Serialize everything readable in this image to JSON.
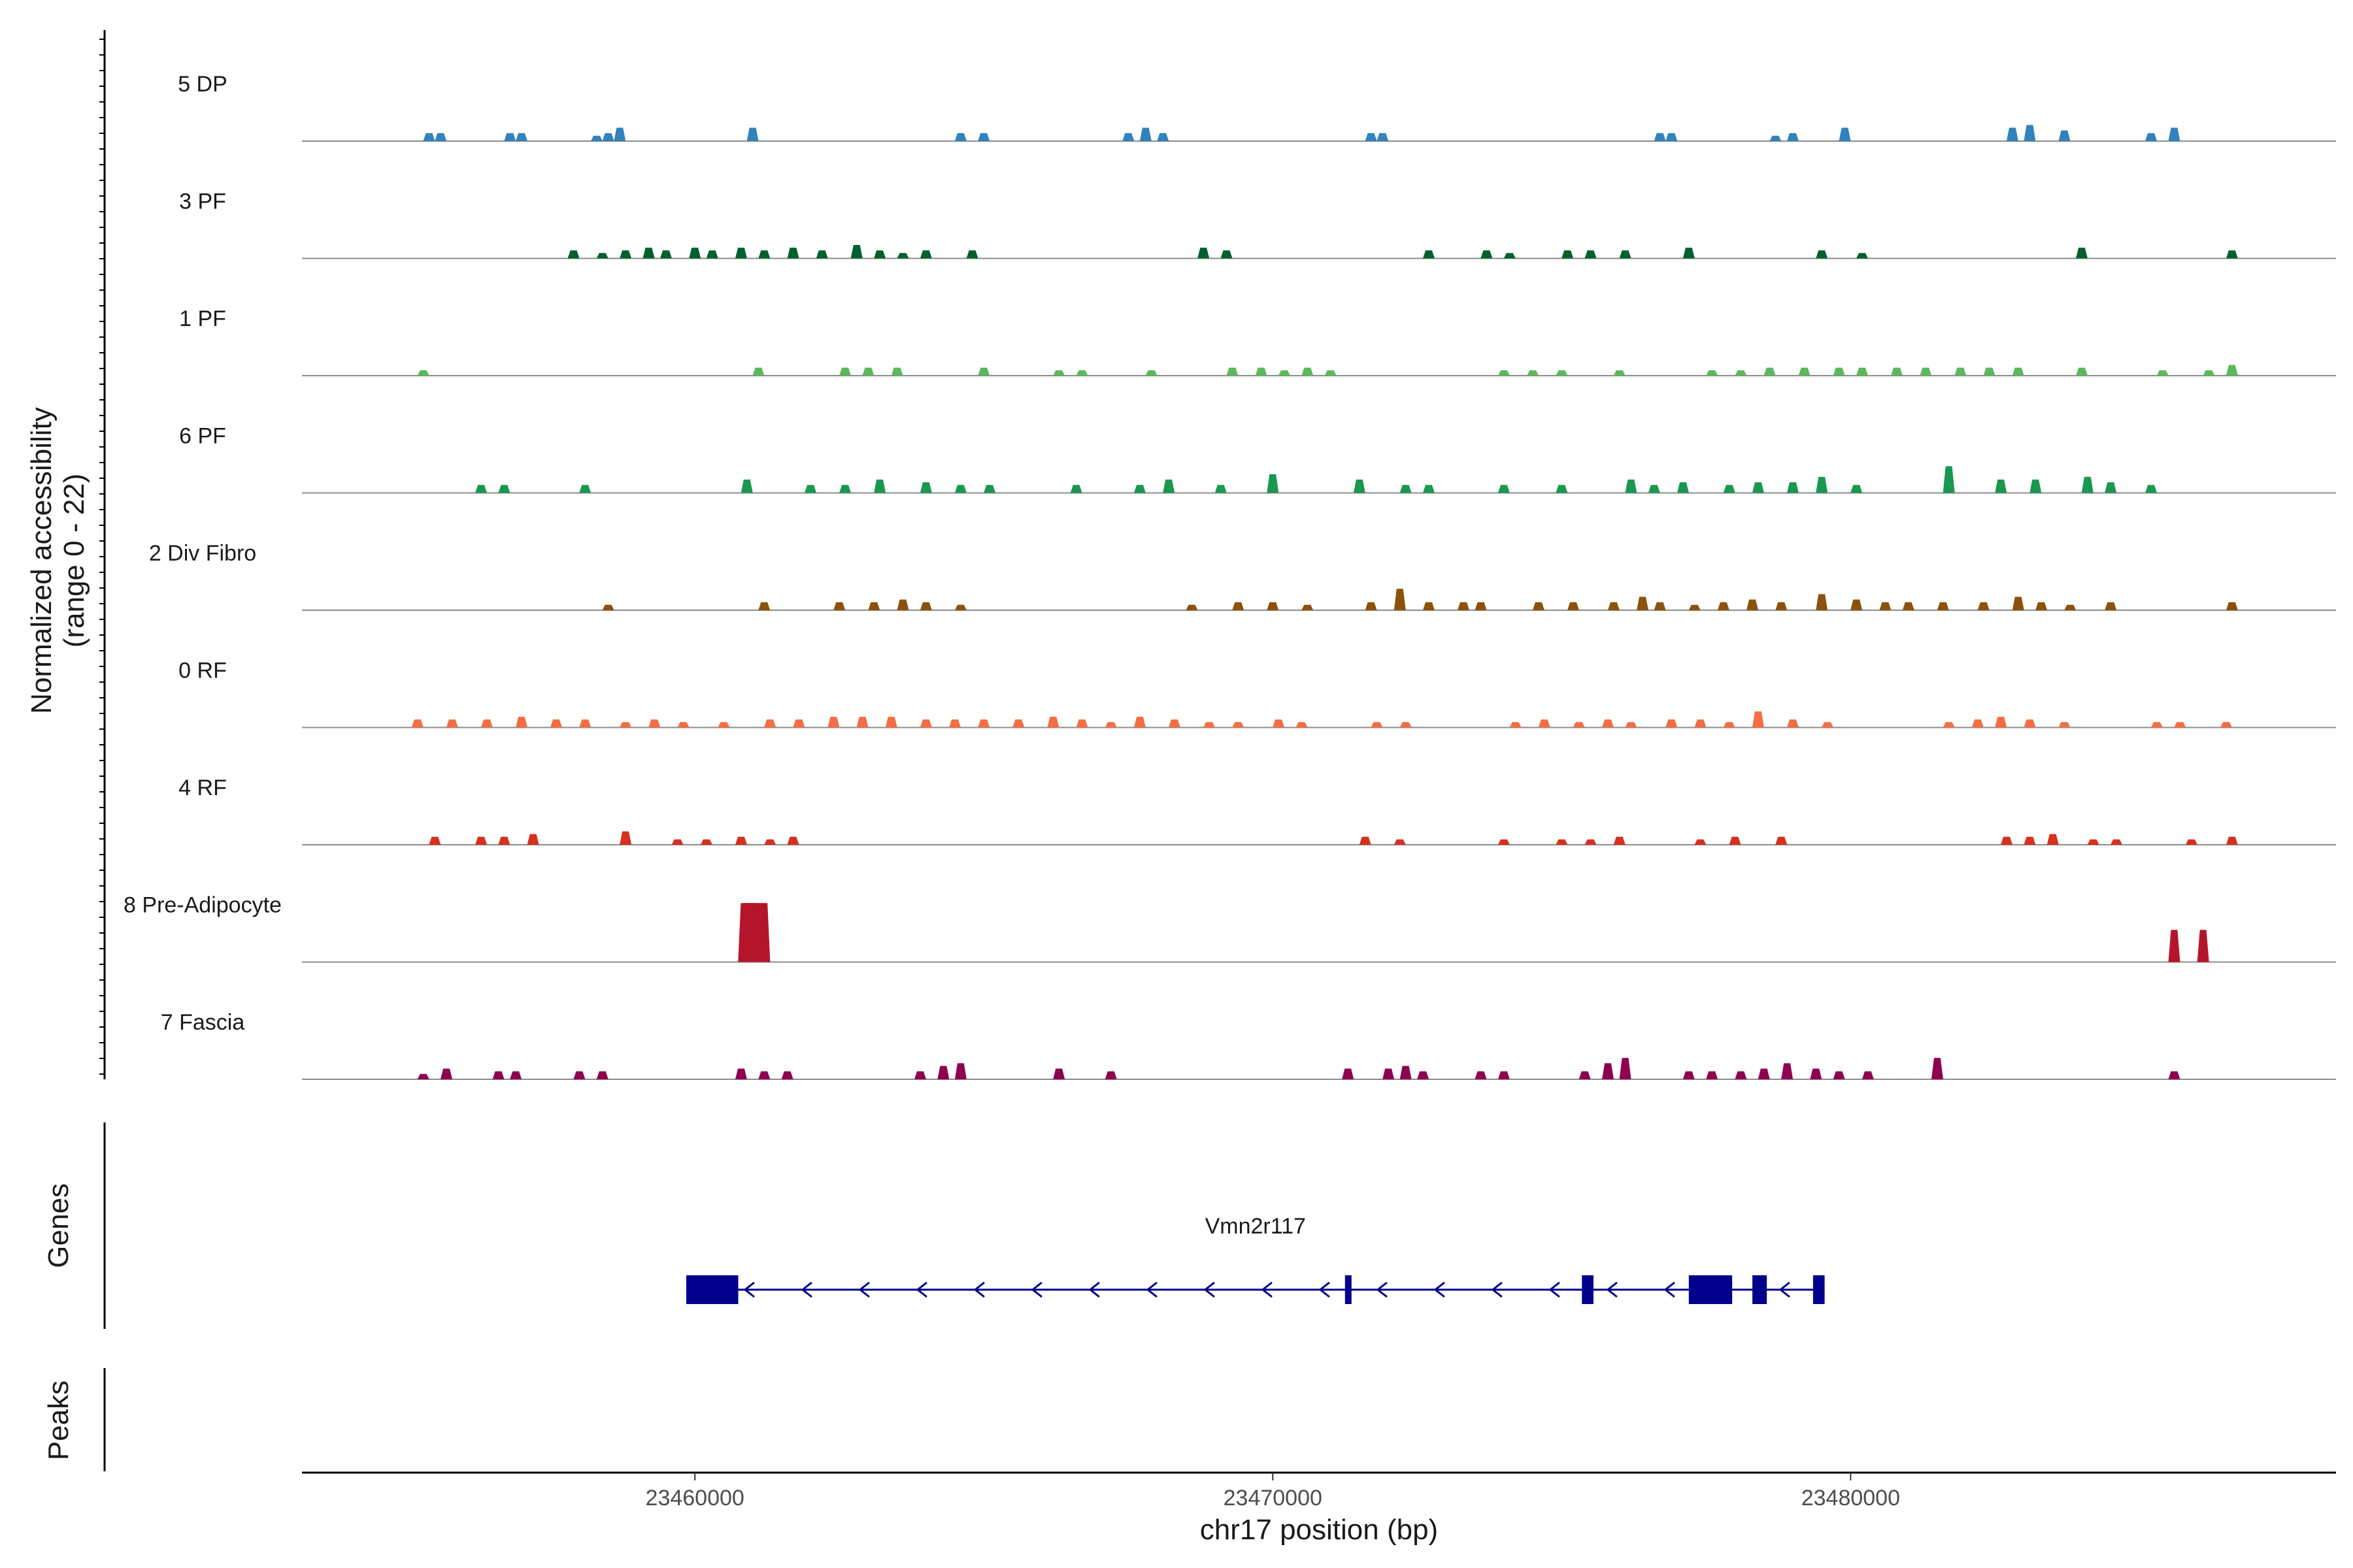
{
  "chart_data": {
    "type": "coverage",
    "title": "",
    "ylabel_line1": "Normalized accessibility",
    "ylabel_line2": "(range 0 - 22)",
    "y_range": [
      0,
      22
    ],
    "xlabel": "chr17 position (bp)",
    "xlim": [
      23453200,
      23488400
    ],
    "x_ticks": [
      23460000,
      23470000,
      23480000
    ],
    "tracks": [
      {
        "name": "5 DP",
        "color": "#3182bd",
        "peaks": [
          [
            23455400,
            1.5
          ],
          [
            23455600,
            1.5
          ],
          [
            23456800,
            1.5
          ],
          [
            23457000,
            1.5
          ],
          [
            23458300,
            1
          ],
          [
            23458500,
            1.5
          ],
          [
            23458700,
            2.5
          ],
          [
            23461000,
            2.5
          ],
          [
            23464600,
            1.5
          ],
          [
            23465000,
            1.5
          ],
          [
            23467500,
            1.5
          ],
          [
            23467800,
            2.5
          ],
          [
            23468100,
            1.5
          ],
          [
            23471700,
            1.5
          ],
          [
            23471900,
            1.5
          ],
          [
            23476700,
            1.5
          ],
          [
            23476900,
            1.5
          ],
          [
            23478700,
            1
          ],
          [
            23479000,
            1.5
          ],
          [
            23479900,
            2.5
          ],
          [
            23482800,
            2.5
          ],
          [
            23483100,
            3
          ],
          [
            23483700,
            2
          ],
          [
            23485200,
            1.5
          ],
          [
            23485600,
            2.5
          ]
        ]
      },
      {
        "name": "3 PF",
        "color": "#00612e",
        "peaks": [
          [
            23457900,
            1.5
          ],
          [
            23458400,
            1
          ],
          [
            23458800,
            1.5
          ],
          [
            23459200,
            2
          ],
          [
            23459500,
            1.5
          ],
          [
            23460000,
            2
          ],
          [
            23460300,
            1.5
          ],
          [
            23460800,
            2
          ],
          [
            23461200,
            1.5
          ],
          [
            23461700,
            2
          ],
          [
            23462200,
            1.5
          ],
          [
            23462800,
            2.5
          ],
          [
            23463200,
            1.5
          ],
          [
            23463600,
            1
          ],
          [
            23464000,
            1.5
          ],
          [
            23464800,
            1.5
          ],
          [
            23468800,
            2
          ],
          [
            23469200,
            1.5
          ],
          [
            23472700,
            1.5
          ],
          [
            23473700,
            1.5
          ],
          [
            23474100,
            1
          ],
          [
            23475100,
            1.5
          ],
          [
            23475500,
            1.5
          ],
          [
            23476100,
            1.5
          ],
          [
            23477200,
            2
          ],
          [
            23479500,
            1.5
          ],
          [
            23480200,
            1
          ],
          [
            23484000,
            2
          ],
          [
            23486600,
            1.5
          ]
        ]
      },
      {
        "name": "1 PF",
        "color": "#5cb85c",
        "peaks": [
          [
            23455300,
            1
          ],
          [
            23461100,
            1.5
          ],
          [
            23462600,
            1.5
          ],
          [
            23463000,
            1.5
          ],
          [
            23463500,
            1.5
          ],
          [
            23465000,
            1.5
          ],
          [
            23466300,
            1
          ],
          [
            23466700,
            1
          ],
          [
            23467900,
            1
          ],
          [
            23469300,
            1.5
          ],
          [
            23469800,
            1.5
          ],
          [
            23470200,
            1
          ],
          [
            23470600,
            1.5
          ],
          [
            23471000,
            1
          ],
          [
            23474000,
            1
          ],
          [
            23474500,
            1
          ],
          [
            23475000,
            1
          ],
          [
            23476000,
            1
          ],
          [
            23477600,
            1
          ],
          [
            23478100,
            1
          ],
          [
            23478600,
            1.5
          ],
          [
            23479200,
            1.5
          ],
          [
            23479800,
            1.5
          ],
          [
            23480200,
            1.5
          ],
          [
            23480800,
            1.5
          ],
          [
            23481300,
            1.5
          ],
          [
            23481900,
            1.5
          ],
          [
            23482400,
            1.5
          ],
          [
            23482900,
            1.5
          ],
          [
            23484000,
            1.5
          ],
          [
            23485400,
            1
          ],
          [
            23486200,
            1
          ],
          [
            23486600,
            2
          ]
        ]
      },
      {
        "name": "6 PF",
        "color": "#1a9850",
        "peaks": [
          [
            23456300,
            1.5
          ],
          [
            23456700,
            1.5
          ],
          [
            23458100,
            1.5
          ],
          [
            23460900,
            2.5
          ],
          [
            23462000,
            1.5
          ],
          [
            23462600,
            1.5
          ],
          [
            23463200,
            2.5
          ],
          [
            23464000,
            2
          ],
          [
            23464600,
            1.5
          ],
          [
            23465100,
            1.5
          ],
          [
            23466600,
            1.5
          ],
          [
            23467700,
            1.5
          ],
          [
            23468200,
            2.5
          ],
          [
            23469100,
            1.5
          ],
          [
            23470000,
            3.5
          ],
          [
            23471500,
            2.5
          ],
          [
            23472300,
            1.5
          ],
          [
            23472700,
            1.5
          ],
          [
            23474000,
            1.5
          ],
          [
            23475000,
            1.5
          ],
          [
            23476200,
            2.5
          ],
          [
            23476600,
            1.5
          ],
          [
            23477100,
            2
          ],
          [
            23477900,
            1.5
          ],
          [
            23478400,
            2
          ],
          [
            23479000,
            2
          ],
          [
            23479500,
            3
          ],
          [
            23480100,
            1.5
          ],
          [
            23481700,
            5
          ],
          [
            23482600,
            2.5
          ],
          [
            23483200,
            2.5
          ],
          [
            23484100,
            3
          ],
          [
            23484500,
            2
          ],
          [
            23485200,
            1.5
          ]
        ]
      },
      {
        "name": "2 Div Fibro",
        "color": "#8c510a",
        "peaks": [
          [
            23458500,
            1
          ],
          [
            23461200,
            1.5
          ],
          [
            23462500,
            1.5
          ],
          [
            23463100,
            1.5
          ],
          [
            23463600,
            2
          ],
          [
            23464000,
            1.5
          ],
          [
            23464600,
            1
          ],
          [
            23468600,
            1
          ],
          [
            23469400,
            1.5
          ],
          [
            23470000,
            1.5
          ],
          [
            23470600,
            1
          ],
          [
            23471700,
            1.5
          ],
          [
            23472200,
            4
          ],
          [
            23472700,
            1.5
          ],
          [
            23473300,
            1.5
          ],
          [
            23473600,
            1.5
          ],
          [
            23474600,
            1.5
          ],
          [
            23475200,
            1.5
          ],
          [
            23475900,
            1.5
          ],
          [
            23476400,
            2.5
          ],
          [
            23476700,
            1.5
          ],
          [
            23477300,
            1
          ],
          [
            23477800,
            1.5
          ],
          [
            23478300,
            2
          ],
          [
            23478800,
            1.5
          ],
          [
            23479500,
            3
          ],
          [
            23480100,
            2
          ],
          [
            23480600,
            1.5
          ],
          [
            23481000,
            1.5
          ],
          [
            23481600,
            1.5
          ],
          [
            23482300,
            1.5
          ],
          [
            23482900,
            2.5
          ],
          [
            23483300,
            1.5
          ],
          [
            23483800,
            1
          ],
          [
            23484500,
            1.5
          ],
          [
            23486600,
            1.5
          ]
        ]
      },
      {
        "name": "0 RF",
        "color": "#f46d43",
        "peaks": [
          [
            23455200,
            1.5
          ],
          [
            23455800,
            1.5
          ],
          [
            23456400,
            1.5
          ],
          [
            23457000,
            2
          ],
          [
            23457600,
            1.5
          ],
          [
            23458100,
            1.5
          ],
          [
            23458800,
            1
          ],
          [
            23459300,
            1.5
          ],
          [
            23459800,
            1
          ],
          [
            23460500,
            1
          ],
          [
            23461300,
            1.5
          ],
          [
            23461800,
            1.5
          ],
          [
            23462400,
            2
          ],
          [
            23462900,
            2
          ],
          [
            23463400,
            2
          ],
          [
            23464000,
            1.5
          ],
          [
            23464500,
            1.5
          ],
          [
            23465000,
            1.5
          ],
          [
            23465600,
            1.5
          ],
          [
            23466200,
            2
          ],
          [
            23466700,
            1.5
          ],
          [
            23467200,
            1
          ],
          [
            23467700,
            2
          ],
          [
            23468300,
            1.5
          ],
          [
            23468900,
            1
          ],
          [
            23469400,
            1
          ],
          [
            23470100,
            1.5
          ],
          [
            23470500,
            1
          ],
          [
            23471800,
            1
          ],
          [
            23472300,
            1
          ],
          [
            23474200,
            1
          ],
          [
            23474700,
            1.5
          ],
          [
            23475300,
            1
          ],
          [
            23475800,
            1.5
          ],
          [
            23476200,
            1
          ],
          [
            23476900,
            1.5
          ],
          [
            23477400,
            1.5
          ],
          [
            23477900,
            1
          ],
          [
            23478400,
            3
          ],
          [
            23479000,
            1.5
          ],
          [
            23479600,
            1
          ],
          [
            23481700,
            1
          ],
          [
            23482200,
            1.5
          ],
          [
            23482600,
            2
          ],
          [
            23483100,
            1.5
          ],
          [
            23483700,
            1
          ],
          [
            23485300,
            1
          ],
          [
            23485700,
            1
          ],
          [
            23486500,
            1
          ]
        ]
      },
      {
        "name": "4 RF",
        "color": "#d7301f",
        "peaks": [
          [
            23455500,
            1.5
          ],
          [
            23456300,
            1.5
          ],
          [
            23456700,
            1.5
          ],
          [
            23457200,
            2
          ],
          [
            23458800,
            2.5
          ],
          [
            23459700,
            1
          ],
          [
            23460200,
            1
          ],
          [
            23460800,
            1.5
          ],
          [
            23461300,
            1
          ],
          [
            23461700,
            1.5
          ],
          [
            23471600,
            1.5
          ],
          [
            23472200,
            1
          ],
          [
            23474000,
            1
          ],
          [
            23475000,
            1
          ],
          [
            23475500,
            1
          ],
          [
            23476000,
            1.5
          ],
          [
            23477400,
            1
          ],
          [
            23478000,
            1.5
          ],
          [
            23478800,
            1.5
          ],
          [
            23482700,
            1.5
          ],
          [
            23483100,
            1.5
          ],
          [
            23483500,
            2
          ],
          [
            23484200,
            1
          ],
          [
            23484600,
            1
          ],
          [
            23485900,
            1
          ],
          [
            23486600,
            1.5
          ]
        ]
      },
      {
        "name": "8 Pre-Adipocyte",
        "color": "#b5152a",
        "peaks": [
          [
            23460850,
            11
          ],
          [
            23460900,
            11
          ],
          [
            23460950,
            11
          ],
          [
            23461000,
            11
          ],
          [
            23461050,
            11
          ],
          [
            23461150,
            11
          ],
          [
            23461200,
            11
          ],
          [
            23485600,
            6
          ],
          [
            23486100,
            6
          ]
        ]
      },
      {
        "name": "7 Fascia",
        "color": "#8e0152",
        "peaks": [
          [
            23455300,
            1
          ],
          [
            23455700,
            2
          ],
          [
            23456600,
            1.5
          ],
          [
            23456900,
            1.5
          ],
          [
            23458000,
            1.5
          ],
          [
            23458400,
            1.5
          ],
          [
            23460800,
            2
          ],
          [
            23461200,
            1.5
          ],
          [
            23461600,
            1.5
          ],
          [
            23463900,
            1.5
          ],
          [
            23464300,
            2.5
          ],
          [
            23464600,
            3
          ],
          [
            23466300,
            2
          ],
          [
            23467200,
            1.5
          ],
          [
            23471300,
            2
          ],
          [
            23472000,
            2
          ],
          [
            23472300,
            2.5
          ],
          [
            23472600,
            1.5
          ],
          [
            23473600,
            1.5
          ],
          [
            23474000,
            1.5
          ],
          [
            23475400,
            1.5
          ],
          [
            23475800,
            3
          ],
          [
            23476100,
            4
          ],
          [
            23477200,
            1.5
          ],
          [
            23477600,
            1.5
          ],
          [
            23478100,
            1.5
          ],
          [
            23478500,
            2
          ],
          [
            23478900,
            3
          ],
          [
            23479400,
            2
          ],
          [
            23479800,
            1.5
          ],
          [
            23480300,
            1.5
          ],
          [
            23481500,
            4
          ],
          [
            23485600,
            1.5
          ]
        ]
      }
    ],
    "gene": {
      "name": "Vmn2r117",
      "color": "#00008b",
      "start": 23459850,
      "end": 23479550,
      "strand": "-",
      "exons": [
        [
          23459850,
          23460750
        ],
        [
          23471250,
          23471350
        ],
        [
          23475350,
          23475550
        ],
        [
          23477200,
          23477950
        ],
        [
          23478300,
          23478550
        ],
        [
          23479350,
          23479550
        ]
      ]
    },
    "gene_panel_label": "Genes",
    "peaks_panel_label": "Peaks"
  }
}
